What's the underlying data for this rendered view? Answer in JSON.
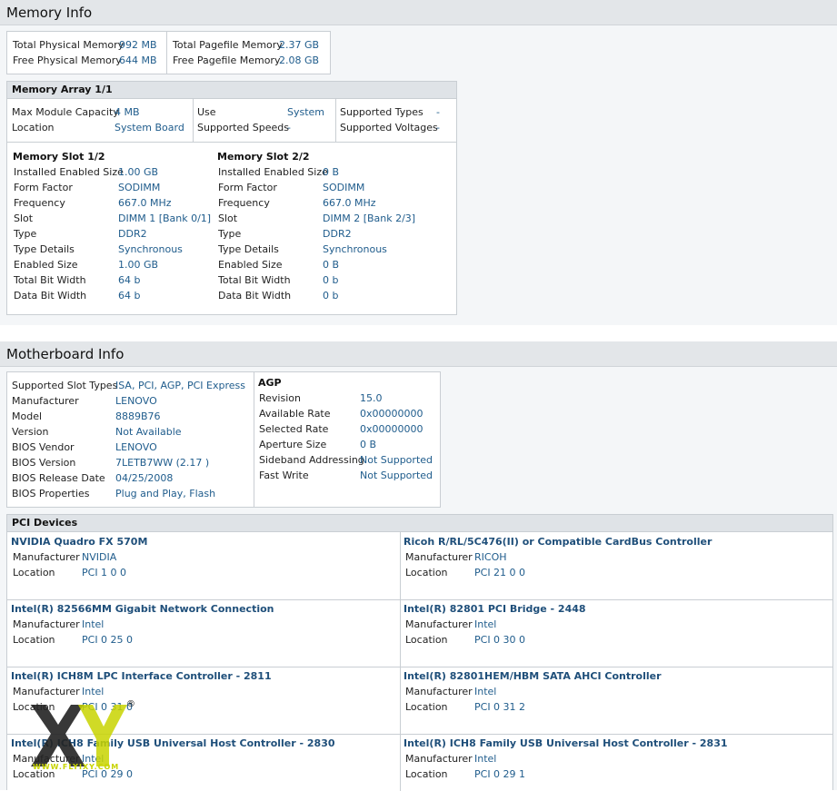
{
  "memory": {
    "title": "Memory Info",
    "summary": [
      {
        "label": "Total Physical Memory",
        "value": "992 MB"
      },
      {
        "label": "Free Physical Memory",
        "value": "644 MB"
      },
      {
        "label": "Total Pagefile Memory",
        "value": "2.37 GB"
      },
      {
        "label": "Free Pagefile Memory",
        "value": "2.08 GB"
      }
    ],
    "array": {
      "title": "Memory Array 1/1",
      "col1": [
        {
          "label": "Max Module Capacity",
          "value": "4 MB"
        },
        {
          "label": "Location",
          "value": "System Board"
        }
      ],
      "col2": [
        {
          "label": "Use",
          "value": "System"
        },
        {
          "label": "Supported Speeds",
          "value": "-"
        }
      ],
      "col3": [
        {
          "label": "Supported Types",
          "value": "-"
        },
        {
          "label": "Supported Voltages",
          "value": "-"
        }
      ]
    },
    "slots": [
      {
        "title": "Memory Slot 1/2",
        "rows": [
          {
            "label": "Installed Enabled Size",
            "value": "1.00 GB"
          },
          {
            "label": "Form Factor",
            "value": "SODIMM"
          },
          {
            "label": "Frequency",
            "value": "667.0 MHz"
          },
          {
            "label": "Slot",
            "value": "DIMM 1 [Bank 0/1]"
          },
          {
            "label": "Type",
            "value": "DDR2"
          },
          {
            "label": "Type Details",
            "value": "Synchronous"
          },
          {
            "label": "Enabled Size",
            "value": "1.00 GB"
          },
          {
            "label": "Total Bit Width",
            "value": "64 b"
          },
          {
            "label": "Data Bit Width",
            "value": "64 b"
          }
        ]
      },
      {
        "title": "Memory Slot 2/2",
        "rows": [
          {
            "label": "Installed Enabled Size",
            "value": "0 B"
          },
          {
            "label": "Form Factor",
            "value": "SODIMM"
          },
          {
            "label": "Frequency",
            "value": "667.0 MHz"
          },
          {
            "label": "Slot",
            "value": "DIMM 2 [Bank 2/3]"
          },
          {
            "label": "Type",
            "value": "DDR2"
          },
          {
            "label": "Type Details",
            "value": "Synchronous"
          },
          {
            "label": "Enabled Size",
            "value": "0 B"
          },
          {
            "label": "Total Bit Width",
            "value": "0 b"
          },
          {
            "label": "Data Bit Width",
            "value": "0 b"
          }
        ]
      }
    ]
  },
  "motherboard": {
    "title": "Motherboard Info",
    "info": [
      {
        "label": "Supported Slot Types",
        "value": "ISA, PCI, AGP, PCI Express"
      },
      {
        "label": "Manufacturer",
        "value": "LENOVO"
      },
      {
        "label": "Model",
        "value": "8889B76"
      },
      {
        "label": "Version",
        "value": "Not Available"
      },
      {
        "label": "BIOS Vendor",
        "value": "LENOVO"
      },
      {
        "label": "BIOS Version",
        "value": "7LETB7WW (2.17 )"
      },
      {
        "label": "BIOS Release Date",
        "value": "04/25/2008"
      },
      {
        "label": "BIOS Properties",
        "value": "Plug and Play, Flash"
      }
    ],
    "agp": {
      "title": "AGP",
      "rows": [
        {
          "label": "Revision",
          "value": "15.0"
        },
        {
          "label": "Available Rate",
          "value": "0x00000000"
        },
        {
          "label": "Selected Rate",
          "value": "0x00000000"
        },
        {
          "label": "Aperture Size",
          "value": "0 B"
        },
        {
          "label": "Sideband Addressing",
          "value": "Not Supported"
        },
        {
          "label": "Fast Write",
          "value": "Not Supported"
        }
      ]
    },
    "pci": {
      "title": "PCI Devices",
      "manufacturer_label": "Manufacturer",
      "location_label": "Location",
      "devices": [
        {
          "name": "NVIDIA Quadro FX 570M",
          "manufacturer": "NVIDIA",
          "location": "PCI 1 0 0"
        },
        {
          "name": "Ricoh R/RL/5C476(II) or Compatible CardBus Controller",
          "manufacturer": "RICOH",
          "location": "PCI 21 0 0"
        },
        {
          "name": "Intel(R) 82566MM Gigabit Network Connection",
          "manufacturer": "Intel",
          "location": "PCI 0 25 0"
        },
        {
          "name": "Intel(R) 82801 PCI Bridge - 2448",
          "manufacturer": "Intel",
          "location": "PCI 0 30 0"
        },
        {
          "name": "Intel(R) ICH8M LPC Interface Controller - 2811",
          "manufacturer": "Intel",
          "location": "PCI 0 31 0"
        },
        {
          "name": "Intel(R) 82801HEM/HBM SATA AHCI Controller",
          "manufacturer": "Intel",
          "location": "PCI 0 31 2"
        },
        {
          "name": "Intel(R) ICH8 Family USB Universal Host Controller - 2830",
          "manufacturer": "Intel",
          "location": "PCI 0 29 0"
        },
        {
          "name": "Intel(R) ICH8 Family USB Universal Host Controller - 2831",
          "manufacturer": "Intel",
          "location": "PCI 0 29 1"
        }
      ]
    }
  },
  "watermark": {
    "letters": "XY",
    "url": "WWW.FLYIXY.COM",
    "mark": "®"
  }
}
